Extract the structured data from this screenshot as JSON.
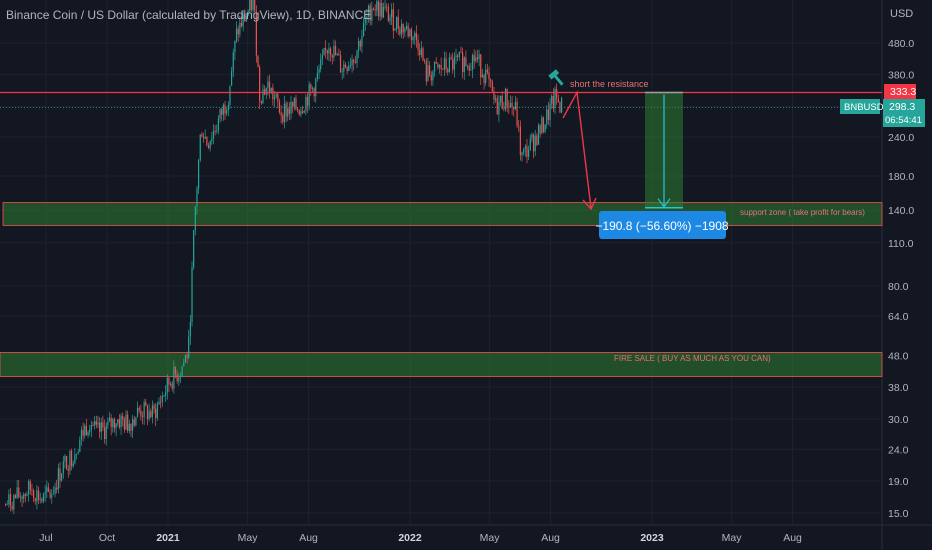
{
  "header": {
    "title": "Binance Coin / US Dollar (calculated by TradingView), 1D, BINANCE"
  },
  "axis": {
    "currency": "USD",
    "y_ticks": [
      "480.0",
      "380.0",
      "300.0",
      "240.0",
      "180.0",
      "140.0",
      "110.0",
      "80.0",
      "64.0",
      "48.0",
      "38.0",
      "30.0",
      "24.0",
      "19.0",
      "15.0"
    ],
    "x_ticks": [
      {
        "label": "Jul",
        "bold": false
      },
      {
        "label": "Oct",
        "bold": false
      },
      {
        "label": "2021",
        "bold": true
      },
      {
        "label": "May",
        "bold": false
      },
      {
        "label": "Aug",
        "bold": false
      },
      {
        "label": "2022",
        "bold": true
      },
      {
        "label": "May",
        "bold": false
      },
      {
        "label": "Aug",
        "bold": false
      },
      {
        "label": "2023",
        "bold": true
      },
      {
        "label": "May",
        "bold": false
      },
      {
        "label": "Aug",
        "bold": false
      }
    ]
  },
  "price_tags": {
    "resistance": "333.3",
    "symbol": "BNBUSD",
    "last_price": "298.3",
    "countdown": "06:54:41"
  },
  "annotations": {
    "short_label": "short the resistance",
    "support_label": "support zone  ( take profit for bears)",
    "fire_sale_label": "FIRE SALE ( BUY AS MUCH AS YOU CAN)",
    "measure_label": "−190.8 (−56.60%) −1908"
  },
  "colors": {
    "background": "#131722",
    "up": "#26a69a",
    "down": "#ef5350",
    "resistance": "#f23645",
    "zone_fill": "#1b5e20",
    "measure": "#1e88e5",
    "text": "#b2b5be"
  },
  "chart_data": {
    "type": "candlestick",
    "scale": "log",
    "ylim": [
      14,
      680
    ],
    "title": "Binance Coin / US Dollar (calculated by TradingView), 1D, BINANCE",
    "path": [
      [
        "2020-05-01",
        16
      ],
      [
        "2020-05-20",
        17
      ],
      [
        "2020-06-10",
        18
      ],
      [
        "2020-06-25",
        16.5
      ],
      [
        "2020-07-10",
        17.5
      ],
      [
        "2020-07-25",
        21
      ],
      [
        "2020-08-10",
        23
      ],
      [
        "2020-08-25",
        27
      ],
      [
        "2020-09-05",
        30
      ],
      [
        "2020-09-15",
        27
      ],
      [
        "2020-10-01",
        28
      ],
      [
        "2020-10-15",
        30
      ],
      [
        "2020-11-01",
        29
      ],
      [
        "2020-11-20",
        32
      ],
      [
        "2020-12-10",
        31
      ],
      [
        "2020-12-25",
        36
      ],
      [
        "2021-01-05",
        40
      ],
      [
        "2021-01-20",
        43
      ],
      [
        "2021-02-01",
        50
      ],
      [
        "2021-02-10",
        130
      ],
      [
        "2021-02-20",
        260
      ],
      [
        "2021-03-01",
        230
      ],
      [
        "2021-03-15",
        260
      ],
      [
        "2021-04-01",
        320
      ],
      [
        "2021-04-15",
        520
      ],
      [
        "2021-05-01",
        600
      ],
      [
        "2021-05-10",
        660
      ],
      [
        "2021-05-19",
        330
      ],
      [
        "2021-06-01",
        350
      ],
      [
        "2021-06-20",
        290
      ],
      [
        "2021-07-20",
        300
      ],
      [
        "2021-08-10",
        350
      ],
      [
        "2021-09-01",
        480
      ],
      [
        "2021-09-20",
        400
      ],
      [
        "2021-10-10",
        440
      ],
      [
        "2021-11-05",
        640
      ],
      [
        "2021-11-25",
        600
      ],
      [
        "2021-12-10",
        560
      ],
      [
        "2022-01-01",
        520
      ],
      [
        "2022-01-15",
        480
      ],
      [
        "2022-01-25",
        380
      ],
      [
        "2022-02-20",
        400
      ],
      [
        "2022-03-20",
        420
      ],
      [
        "2022-04-10",
        430
      ],
      [
        "2022-04-25",
        380
      ],
      [
        "2022-05-10",
        300
      ],
      [
        "2022-05-25",
        320
      ],
      [
        "2022-06-10",
        290
      ],
      [
        "2022-06-18",
        205
      ],
      [
        "2022-07-01",
        225
      ],
      [
        "2022-07-20",
        260
      ],
      [
        "2022-08-08",
        320
      ],
      [
        "2022-08-20",
        298
      ]
    ],
    "resistance": 333.3,
    "last_price": 298.3,
    "support_zone": [
      125,
      148
    ],
    "fire_sale_zone": [
      41,
      49
    ],
    "measure": {
      "from": 333.3,
      "to": 142.5,
      "change": -190.8,
      "change_pct": -56.6,
      "ticks": -1908
    }
  }
}
